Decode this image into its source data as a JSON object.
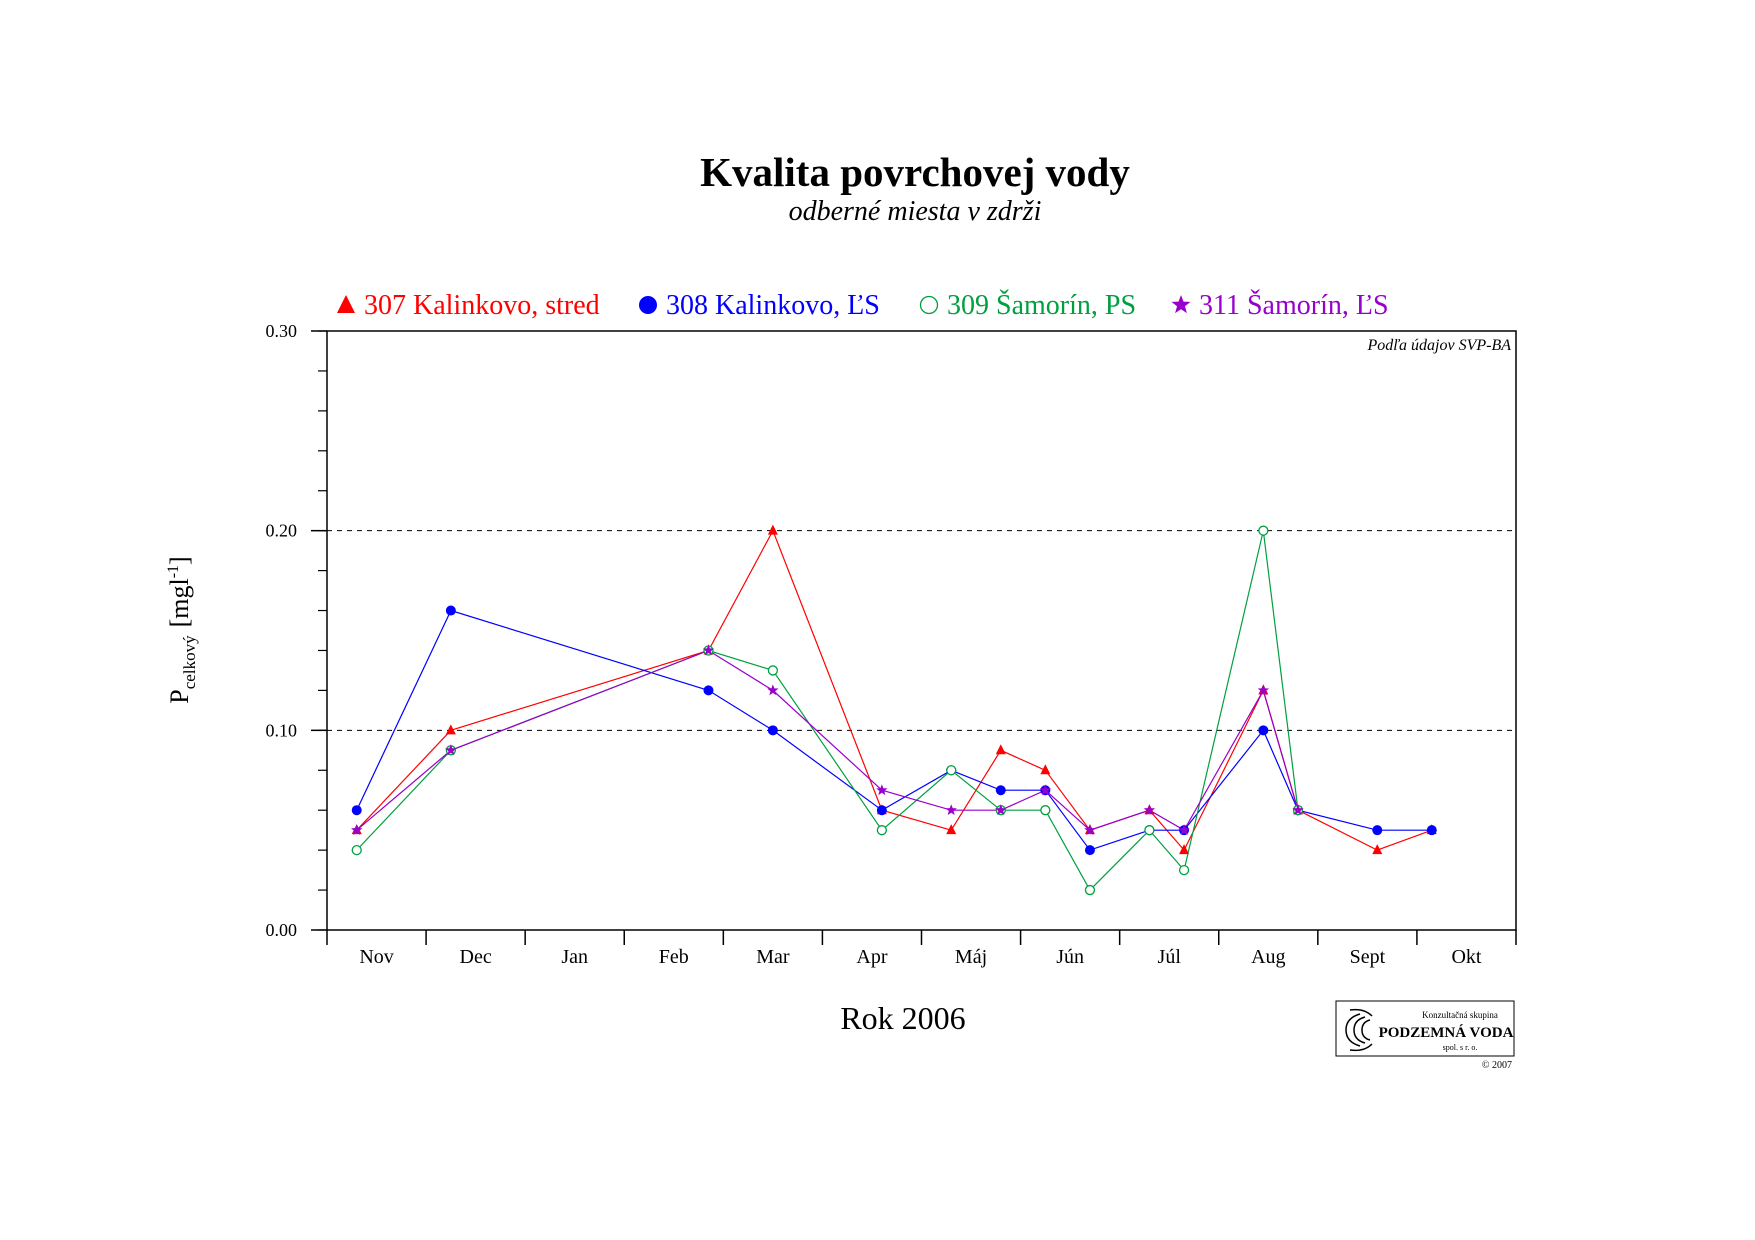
{
  "page": {
    "title": "Kvalita povrchovej vody",
    "subtitle": "odberné miesta v zdrži",
    "source_note": "Podľa údajov SVP-BA",
    "logo": {
      "line1": "Konzultačná skupina",
      "line2": "PODZEMNÁ VODA",
      "line3": "spol. s r. o.",
      "copyright": "© 2007"
    }
  },
  "chart_data": {
    "type": "line",
    "title": "Kvalita povrchovej vody",
    "subtitle": "odberné miesta v zdrži",
    "xlabel": "Rok 2006",
    "ylabel": "P",
    "ylabel_sub": "celkový",
    "ylabel_unit": "[mgl",
    "ylabel_unit_sup": "-1",
    "ylabel_unit_end": "]",
    "months": [
      "Nov",
      "Dec",
      "Jan",
      "Feb",
      "Mar",
      "Apr",
      "Máj",
      "Jún",
      "Júl",
      "Aug",
      "Sept",
      "Okt"
    ],
    "x_range": [
      0,
      12
    ],
    "ylim": [
      0,
      0.3
    ],
    "yticks": [
      "0.00",
      "0.10",
      "0.20",
      "0.30"
    ],
    "ytick_values": [
      0,
      0.1,
      0.2,
      0.3
    ],
    "minor_ytick_step": 0.02,
    "gridlines": [
      0.1,
      0.2
    ],
    "grid": "dashed at 0.10 and 0.20",
    "legend_position": "top",
    "series": [
      {
        "name": "307 Kalinkovo, stred",
        "marker": "triangle",
        "color": "#ff0000",
        "points": [
          [
            0.3,
            0.05
          ],
          [
            1.25,
            0.1
          ],
          [
            3.85,
            0.14
          ],
          [
            4.5,
            0.2
          ],
          [
            5.6,
            0.06
          ],
          [
            6.3,
            0.05
          ],
          [
            6.8,
            0.09
          ],
          [
            7.25,
            0.08
          ],
          [
            7.7,
            0.05
          ],
          [
            8.3,
            0.06
          ],
          [
            8.65,
            0.04
          ],
          [
            9.45,
            0.12
          ],
          [
            9.8,
            0.06
          ],
          [
            10.6,
            0.04
          ],
          [
            11.15,
            0.05
          ]
        ]
      },
      {
        "name": "308 Kalinkovo, ĽS",
        "marker": "circle",
        "color": "#0000ff",
        "points": [
          [
            0.3,
            0.06
          ],
          [
            1.25,
            0.16
          ],
          [
            3.85,
            0.12
          ],
          [
            4.5,
            0.1
          ],
          [
            5.6,
            0.06
          ],
          [
            6.3,
            0.08
          ],
          [
            6.8,
            0.07
          ],
          [
            7.25,
            0.07
          ],
          [
            7.7,
            0.04
          ],
          [
            8.3,
            0.05
          ],
          [
            8.65,
            0.05
          ],
          [
            9.45,
            0.1
          ],
          [
            9.8,
            0.06
          ],
          [
            10.6,
            0.05
          ],
          [
            11.15,
            0.05
          ]
        ]
      },
      {
        "name": "309 Šamorín, PS",
        "marker": "open-circle",
        "color": "#00a040",
        "points": [
          [
            0.3,
            0.04
          ],
          [
            1.25,
            0.09
          ],
          [
            3.85,
            0.14
          ],
          [
            4.5,
            0.13
          ],
          [
            5.6,
            0.05
          ],
          [
            6.3,
            0.08
          ],
          [
            6.8,
            0.06
          ],
          [
            7.25,
            0.06
          ],
          [
            7.7,
            0.02
          ],
          [
            8.3,
            0.05
          ],
          [
            8.65,
            0.03
          ],
          [
            9.45,
            0.2
          ],
          [
            9.8,
            0.06
          ]
        ]
      },
      {
        "name": "311 Šamorín, ĽS",
        "marker": "star",
        "color": "#9900cc",
        "points": [
          [
            0.3,
            0.05
          ],
          [
            1.25,
            0.09
          ],
          [
            3.85,
            0.14
          ],
          [
            4.5,
            0.12
          ],
          [
            5.6,
            0.07
          ],
          [
            6.3,
            0.06
          ],
          [
            6.8,
            0.06
          ],
          [
            7.25,
            0.07
          ],
          [
            7.7,
            0.05
          ],
          [
            8.3,
            0.06
          ],
          [
            8.65,
            0.05
          ],
          [
            9.45,
            0.12
          ],
          [
            9.8,
            0.06
          ]
        ]
      }
    ]
  }
}
